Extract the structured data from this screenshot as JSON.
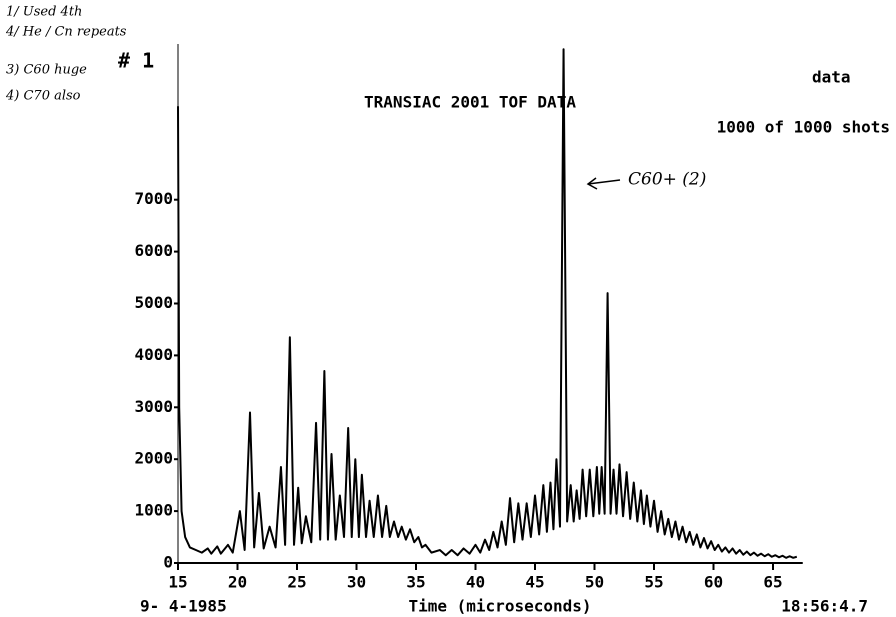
{
  "chart_data": {
    "type": "line",
    "title": "TRANSIAC 2001 TOF DATA",
    "subtitle": "data",
    "shots": "1000 of 1000 shots",
    "date": "9- 4-1985",
    "time": "18:56:4.7",
    "x_label": "Time (microseconds)",
    "annotations": [
      "1/ Used 4th",
      "4/ He / Cn repeats",
      "3) C60 huge",
      "4) C70 also",
      "# 1",
      "C60+ (2)"
    ],
    "color": "#000000",
    "xlim": [
      15,
      67.5
    ],
    "ylim": [
      0,
      10000
    ],
    "xticks": [
      15,
      20,
      25,
      30,
      35,
      40,
      45,
      50,
      55,
      60,
      65
    ],
    "yticks": [
      0,
      1000,
      2000,
      3000,
      4000,
      5000,
      6000,
      7000
    ],
    "x": [
      15.0,
      15.1,
      15.3,
      15.6,
      16.0,
      16.5,
      17.0,
      17.5,
      17.8,
      18.3,
      18.6,
      19.2,
      19.6,
      20.2,
      20.6,
      21.05,
      21.4,
      21.8,
      22.2,
      22.7,
      23.2,
      23.65,
      24.0,
      24.4,
      24.75,
      25.1,
      25.4,
      25.75,
      26.2,
      26.6,
      26.95,
      27.3,
      27.6,
      27.9,
      28.25,
      28.6,
      28.95,
      29.3,
      29.6,
      29.9,
      30.2,
      30.45,
      30.8,
      31.1,
      31.45,
      31.8,
      32.15,
      32.5,
      32.8,
      33.15,
      33.5,
      33.8,
      34.15,
      34.5,
      34.85,
      35.2,
      35.5,
      35.8,
      36.3,
      37.0,
      37.5,
      38.0,
      38.5,
      39.0,
      39.5,
      40.0,
      40.4,
      40.8,
      41.15,
      41.5,
      41.85,
      42.2,
      42.55,
      42.9,
      43.25,
      43.6,
      43.95,
      44.3,
      44.65,
      45.0,
      45.35,
      45.7,
      46.0,
      46.3,
      46.55,
      46.8,
      47.1,
      47.4,
      47.7,
      48.0,
      48.25,
      48.5,
      48.75,
      49.0,
      49.3,
      49.6,
      49.9,
      50.2,
      50.4,
      50.6,
      50.85,
      51.1,
      51.35,
      51.6,
      51.85,
      52.1,
      52.4,
      52.7,
      53.0,
      53.3,
      53.6,
      53.9,
      54.15,
      54.4,
      54.7,
      55.0,
      55.3,
      55.6,
      55.9,
      56.2,
      56.5,
      56.8,
      57.1,
      57.4,
      57.7,
      58.0,
      58.3,
      58.6,
      58.9,
      59.2,
      59.5,
      59.8,
      60.1,
      60.4,
      60.7,
      61.0,
      61.3,
      61.6,
      61.9,
      62.2,
      62.5,
      62.8,
      63.1,
      63.4,
      63.7,
      64.0,
      64.3,
      64.6,
      64.9,
      65.2,
      65.5,
      65.8,
      66.1,
      66.4,
      66.7,
      67.0
    ],
    "values": [
      8800,
      3000,
      1000,
      500,
      300,
      250,
      200,
      280,
      180,
      320,
      180,
      350,
      200,
      1000,
      250,
      2900,
      300,
      1350,
      280,
      700,
      300,
      1850,
      350,
      4350,
      350,
      1450,
      380,
      900,
      400,
      2700,
      450,
      3700,
      450,
      2100,
      450,
      1300,
      500,
      2600,
      500,
      2000,
      500,
      1700,
      500,
      1200,
      500,
      1300,
      500,
      1100,
      500,
      800,
      500,
      700,
      450,
      650,
      400,
      500,
      300,
      350,
      200,
      250,
      150,
      250,
      150,
      280,
      180,
      350,
      200,
      450,
      250,
      600,
      300,
      800,
      350,
      1250,
      400,
      1150,
      450,
      1150,
      500,
      1300,
      550,
      1500,
      600,
      1550,
      650,
      2000,
      700,
      9900,
      800,
      1500,
      800,
      1400,
      850,
      1800,
      900,
      1800,
      900,
      1850,
      950,
      1850,
      950,
      5200,
      950,
      1800,
      950,
      1900,
      900,
      1750,
      850,
      1550,
      800,
      1400,
      750,
      1300,
      700,
      1200,
      600,
      1000,
      550,
      850,
      500,
      800,
      450,
      700,
      400,
      600,
      350,
      550,
      300,
      480,
      280,
      420,
      250,
      350,
      220,
      300,
      200,
      280,
      180,
      250,
      160,
      220,
      150,
      200,
      140,
      180,
      130,
      170,
      120,
      150,
      110,
      140,
      100,
      130,
      100,
      120
    ]
  }
}
